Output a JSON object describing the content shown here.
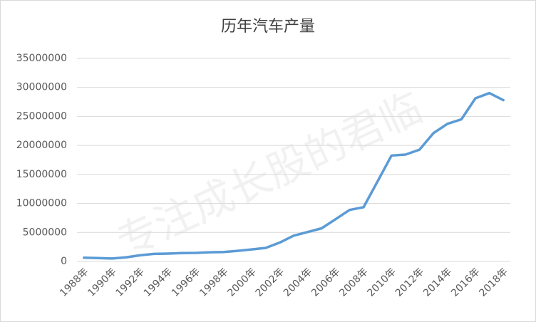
{
  "chart_data": {
    "type": "line",
    "title": "历年汽车产量",
    "watermark": "专注成长股的君临",
    "categories": [
      "1988年",
      null,
      "1990年",
      null,
      "1992年",
      null,
      "1994年",
      null,
      "1996年",
      null,
      "1998年",
      null,
      "2000年",
      null,
      "2002年",
      null,
      "2004年",
      null,
      "2006年",
      null,
      "2008年",
      null,
      "2010年",
      null,
      "2012年",
      null,
      "2014年",
      null,
      "2016年",
      null,
      "2018年"
    ],
    "series": [
      {
        "name": "汽车产量",
        "color": "#5b9bd5",
        "values": [
          650000,
          590000,
          510000,
          710000,
          1060000,
          1300000,
          1350000,
          1450000,
          1480000,
          1580000,
          1630000,
          1830000,
          2070000,
          2340000,
          3250000,
          4440000,
          5070000,
          5710000,
          7280000,
          8880000,
          9350000,
          13790000,
          18260000,
          18420000,
          19270000,
          22120000,
          23720000,
          24500000,
          28120000,
          29020000,
          27810000
        ]
      }
    ],
    "ylim": [
      0,
      35000000
    ],
    "yticks": [
      0,
      5000000,
      10000000,
      15000000,
      20000000,
      25000000,
      30000000,
      35000000
    ],
    "grid": true
  }
}
